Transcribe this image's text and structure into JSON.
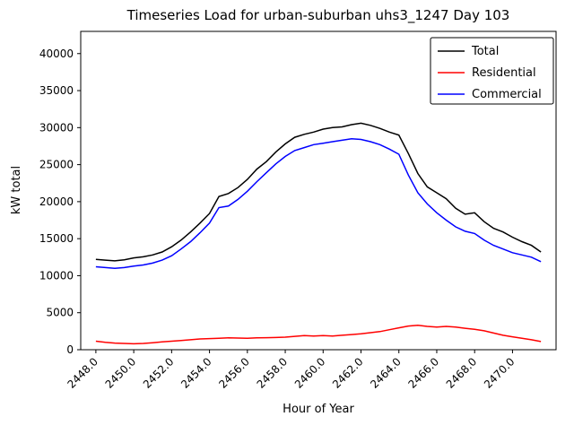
{
  "chart_data": {
    "type": "line",
    "title": "Timeseries Load for urban-suburban uhs3_1247  Day 103",
    "xlabel": "Hour of Year",
    "ylabel": "kW total",
    "xlim": [
      2447.2,
      2472.3
    ],
    "ylim": [
      0,
      43000
    ],
    "xticks": [
      2448.0,
      2450.0,
      2452.0,
      2454.0,
      2456.0,
      2458.0,
      2460.0,
      2462.0,
      2464.0,
      2466.0,
      2468.0,
      2470.0
    ],
    "yticks": [
      0,
      5000,
      10000,
      15000,
      20000,
      25000,
      30000,
      35000,
      40000
    ],
    "grid": false,
    "legend_position": "upper-right",
    "x": [
      2448.0,
      2448.5,
      2449.0,
      2449.5,
      2450.0,
      2450.5,
      2451.0,
      2451.5,
      2452.0,
      2452.5,
      2453.0,
      2453.5,
      2454.0,
      2454.5,
      2455.0,
      2455.5,
      2456.0,
      2456.5,
      2457.0,
      2457.5,
      2458.0,
      2458.5,
      2459.0,
      2459.5,
      2460.0,
      2460.5,
      2461.0,
      2461.5,
      2462.0,
      2462.5,
      2463.0,
      2463.5,
      2464.0,
      2464.5,
      2465.0,
      2465.5,
      2466.0,
      2466.5,
      2467.0,
      2467.5,
      2468.0,
      2468.5,
      2469.0,
      2469.5,
      2470.0,
      2470.5,
      2471.0,
      2471.5
    ],
    "series": [
      {
        "name": "Total",
        "color": "#000000",
        "values": [
          12200,
          12100,
          12000,
          12150,
          12400,
          12550,
          12800,
          13200,
          13900,
          14800,
          15900,
          17100,
          18400,
          20700,
          21100,
          21900,
          23000,
          24400,
          25400,
          26700,
          27800,
          28700,
          29100,
          29400,
          29800,
          30000,
          30100,
          30400,
          30600,
          30300,
          29900,
          29400,
          29000,
          26500,
          23800,
          22000,
          21200,
          20400,
          19100,
          18300,
          18500,
          17300,
          16400,
          15900,
          15200,
          14600,
          14100,
          13200
        ]
      },
      {
        "name": "Residential",
        "color": "#ff0000",
        "values": [
          1150,
          1000,
          900,
          850,
          800,
          850,
          950,
          1050,
          1150,
          1250,
          1350,
          1450,
          1500,
          1550,
          1600,
          1580,
          1550,
          1600,
          1620,
          1650,
          1700,
          1800,
          1900,
          1850,
          1900,
          1850,
          1950,
          2050,
          2150,
          2300,
          2450,
          2700,
          2950,
          3200,
          3300,
          3150,
          3050,
          3150,
          3050,
          2900,
          2750,
          2550,
          2250,
          1950,
          1750,
          1550,
          1350,
          1100
        ]
      },
      {
        "name": "Commercial",
        "color": "#0000ff",
        "values": [
          11200,
          11100,
          11000,
          11100,
          11300,
          11450,
          11700,
          12100,
          12700,
          13600,
          14600,
          15800,
          17100,
          19200,
          19400,
          20300,
          21400,
          22700,
          23900,
          25100,
          26100,
          26900,
          27300,
          27700,
          27900,
          28100,
          28300,
          28500,
          28400,
          28100,
          27700,
          27100,
          26400,
          23600,
          21200,
          19700,
          18500,
          17500,
          16600,
          16000,
          15700,
          14800,
          14100,
          13600,
          13100,
          12800,
          12500,
          11900
        ]
      }
    ]
  }
}
